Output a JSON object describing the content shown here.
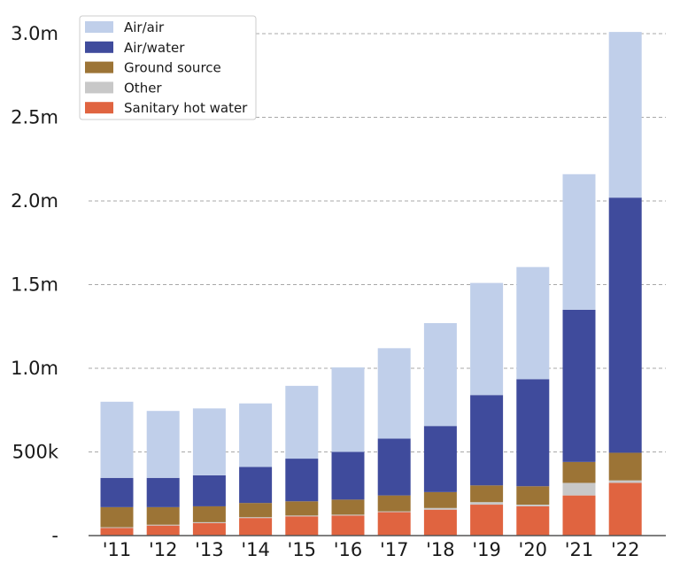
{
  "chart_data": {
    "type": "bar",
    "stacked": true,
    "categories": [
      "'11",
      "'12",
      "'13",
      "'14",
      "'15",
      "'16",
      "'17",
      "'18",
      "'19",
      "'20",
      "'21",
      "'22"
    ],
    "series": [
      {
        "name": "Sanitary hot water",
        "color": "#e06440",
        "values": [
          45000,
          60000,
          75000,
          105000,
          115000,
          120000,
          140000,
          155000,
          185000,
          175000,
          240000,
          315000
        ]
      },
      {
        "name": "Other",
        "color": "#c8c8c8",
        "values": [
          5000,
          5000,
          5000,
          5000,
          5000,
          5000,
          5000,
          10000,
          15000,
          10000,
          75000,
          15000
        ]
      },
      {
        "name": "Ground source",
        "color": "#9c7436",
        "values": [
          120000,
          105000,
          95000,
          85000,
          85000,
          90000,
          95000,
          95000,
          100000,
          110000,
          125000,
          165000
        ]
      },
      {
        "name": "Air/water",
        "color": "#3f4b9c",
        "values": [
          175000,
          175000,
          185000,
          215000,
          255000,
          285000,
          340000,
          395000,
          540000,
          640000,
          910000,
          1525000
        ]
      },
      {
        "name": "Air/air",
        "color": "#c0cfea",
        "values": [
          455000,
          400000,
          400000,
          380000,
          435000,
          505000,
          540000,
          615000,
          670000,
          670000,
          810000,
          990000
        ]
      }
    ],
    "legend_order": [
      "Air/air",
      "Air/water",
      "Ground source",
      "Other",
      "Sanitary hot water"
    ],
    "legend_position": "top-left",
    "y_ticks": [
      {
        "value": 0,
        "label": "-"
      },
      {
        "value": 500000,
        "label": "500k"
      },
      {
        "value": 1000000,
        "label": "1.0m"
      },
      {
        "value": 1500000,
        "label": "1.5m"
      },
      {
        "value": 2000000,
        "label": "2.0m"
      },
      {
        "value": 2500000,
        "label": "2.5m"
      },
      {
        "value": 3000000,
        "label": "3.0m"
      }
    ],
    "ylim": [
      0,
      3000000
    ],
    "grid": "horizontal-dashed",
    "title": "",
    "xlabel": "",
    "ylabel": ""
  }
}
